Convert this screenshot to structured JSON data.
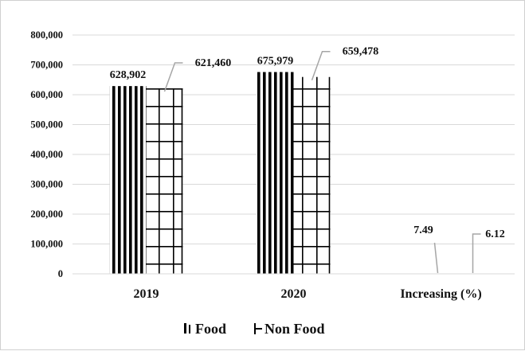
{
  "chart_data": {
    "type": "bar",
    "title": "",
    "xlabel": "",
    "ylabel": "",
    "categories": [
      "2019",
      "2020",
      "Increasing (%)"
    ],
    "series": [
      {
        "name": "Food",
        "values": [
          628902,
          675979,
          7.49
        ],
        "labels": [
          "628,902",
          "675,979",
          "7.49"
        ],
        "pattern": "vertical-stripes"
      },
      {
        "name": "Non Food",
        "values": [
          621460,
          659478,
          6.12
        ],
        "labels": [
          "621,460",
          "659,478",
          "6.12"
        ],
        "pattern": "grid"
      }
    ],
    "ylim": [
      0,
      800000
    ],
    "yticks": [
      "0",
      "100,000",
      "200,000",
      "300,000",
      "400,000",
      "500,000",
      "600,000",
      "700,000",
      "800,000"
    ],
    "grid": true,
    "legend_position": "bottom",
    "colors": {
      "bar": "#000000",
      "grid": "#d9d9d9",
      "label": "#111111",
      "leader": "#a6a6a6"
    }
  }
}
